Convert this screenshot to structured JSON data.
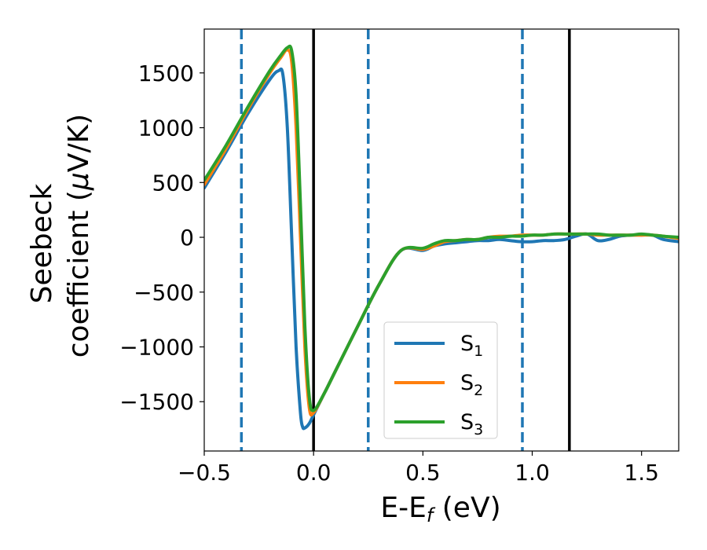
{
  "chart_data": {
    "type": "line",
    "xlabel": {
      "main": "E-E",
      "sub": "f",
      "unit": " (eV)"
    },
    "ylabel": {
      "line1": "Seebeck",
      "line2_prefix": "coefficient  (",
      "mu": "μ",
      "line2_suffix": "V/K)"
    },
    "xlim": [
      -0.5,
      1.67
    ],
    "ylim": [
      -1950,
      1900
    ],
    "x_ticks": [
      -0.5,
      0.0,
      0.5,
      1.0,
      1.5
    ],
    "x_tick_labels": [
      "−0.5",
      "0.0",
      "0.5",
      "1.0",
      "1.5"
    ],
    "y_ticks": [
      1500,
      1000,
      500,
      0,
      -500,
      -1000,
      -1500
    ],
    "y_tick_labels": [
      "1500",
      "1000",
      "500",
      "0",
      "−500",
      "−1000",
      "−1500"
    ],
    "vlines": [
      {
        "x": -0.33,
        "style": "dashed",
        "color": "#1f77b4"
      },
      {
        "x": 0.0,
        "style": "solid",
        "color": "#000000"
      },
      {
        "x": 0.25,
        "style": "dashed",
        "color": "#1f77b4"
      },
      {
        "x": 0.955,
        "style": "dashed",
        "color": "#1f77b4"
      },
      {
        "x": 1.17,
        "style": "solid",
        "color": "#000000"
      }
    ],
    "legend_position": "lower-center",
    "series": [
      {
        "name": "S",
        "sub": "1",
        "color": "#1f77b4",
        "x": [
          -0.5,
          -0.4,
          -0.3,
          -0.2,
          -0.16,
          -0.14,
          -0.12,
          -0.1,
          -0.08,
          -0.06,
          -0.05,
          -0.04,
          -0.02,
          0.0,
          0.05,
          0.1,
          0.2,
          0.3,
          0.4,
          0.5,
          0.55,
          0.6,
          0.65,
          0.7,
          0.75,
          0.8,
          0.85,
          0.9,
          0.95,
          1.0,
          1.05,
          1.1,
          1.15,
          1.2,
          1.25,
          1.3,
          1.35,
          1.4,
          1.45,
          1.5,
          1.55,
          1.6,
          1.67
        ],
        "y": [
          450,
          780,
          1130,
          1440,
          1520,
          1480,
          1000,
          0,
          -1000,
          -1600,
          -1730,
          -1740,
          -1700,
          -1620,
          -1420,
          -1220,
          -820,
          -430,
          -120,
          -120,
          -80,
          -60,
          -50,
          -40,
          -30,
          -30,
          -20,
          -30,
          -40,
          -40,
          -30,
          -30,
          -20,
          10,
          30,
          -30,
          -20,
          10,
          20,
          20,
          20,
          -20,
          -40
        ]
      },
      {
        "name": "S",
        "sub": "2",
        "color": "#ff7f0e",
        "x": [
          -0.5,
          -0.4,
          -0.3,
          -0.2,
          -0.15,
          -0.12,
          -0.1,
          -0.08,
          -0.06,
          -0.04,
          -0.02,
          0.0,
          0.05,
          0.1,
          0.2,
          0.3,
          0.4,
          0.5,
          0.55,
          0.6,
          0.65,
          0.7,
          0.75,
          0.8,
          0.85,
          0.9,
          0.95,
          1.0,
          1.05,
          1.1,
          1.15,
          1.2,
          1.25,
          1.3,
          1.35,
          1.4,
          1.45,
          1.5,
          1.55,
          1.6,
          1.67
        ],
        "y": [
          480,
          810,
          1170,
          1500,
          1640,
          1710,
          1600,
          1000,
          0,
          -1000,
          -1550,
          -1600,
          -1420,
          -1220,
          -820,
          -430,
          -120,
          -110,
          -80,
          -40,
          -30,
          -20,
          -20,
          0,
          10,
          10,
          20,
          20,
          20,
          30,
          30,
          30,
          30,
          20,
          20,
          20,
          20,
          20,
          20,
          10,
          -10
        ]
      },
      {
        "name": "S",
        "sub": "3",
        "color": "#2ca02c",
        "x": [
          -0.5,
          -0.4,
          -0.3,
          -0.2,
          -0.15,
          -0.12,
          -0.1,
          -0.08,
          -0.06,
          -0.04,
          -0.02,
          0.0,
          0.05,
          0.1,
          0.2,
          0.3,
          0.4,
          0.5,
          0.55,
          0.6,
          0.65,
          0.7,
          0.75,
          0.8,
          0.85,
          0.9,
          0.95,
          1.0,
          1.05,
          1.1,
          1.15,
          1.2,
          1.25,
          1.3,
          1.35,
          1.4,
          1.45,
          1.5,
          1.55,
          1.6,
          1.67
        ],
        "y": [
          520,
          840,
          1190,
          1520,
          1660,
          1730,
          1700,
          1300,
          300,
          -800,
          -1450,
          -1580,
          -1420,
          -1220,
          -820,
          -430,
          -120,
          -100,
          -60,
          -30,
          -30,
          -20,
          -20,
          0,
          0,
          10,
          10,
          20,
          20,
          30,
          30,
          30,
          30,
          30,
          20,
          20,
          20,
          30,
          20,
          10,
          0
        ]
      }
    ]
  }
}
